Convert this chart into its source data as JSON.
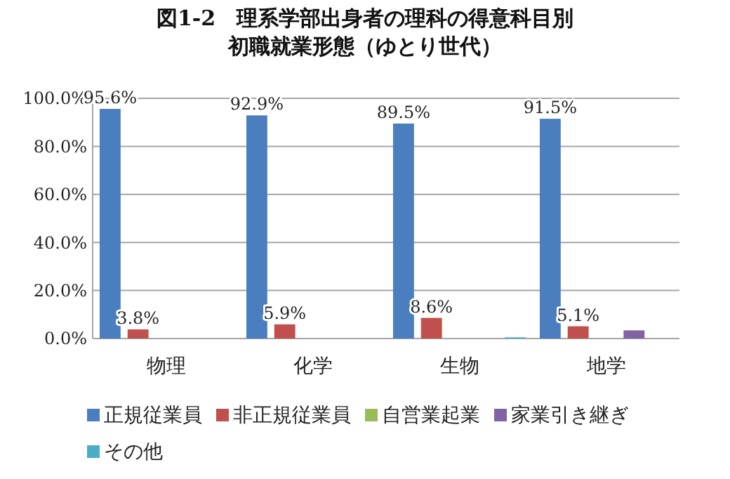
{
  "chart_data": {
    "type": "bar",
    "title": "図1-2　理系学部出身者の理科の得意科目別",
    "subtitle": "初職就業形態（ゆとり世代）",
    "categories": [
      "物理",
      "化学",
      "生物",
      "地学"
    ],
    "series": [
      {
        "name": "正規従業員",
        "color": "#4a7ebf",
        "values": [
          95.6,
          92.9,
          89.5,
          91.5
        ],
        "value_labels": [
          "95.6%",
          "92.9%",
          "89.5%",
          "91.5%"
        ]
      },
      {
        "name": "非正規従業員",
        "color": "#c0504d",
        "values": [
          3.8,
          5.9,
          8.6,
          5.1
        ],
        "value_labels": [
          "3.8%",
          "5.9%",
          "8.6%",
          "5.1%"
        ]
      },
      {
        "name": "自営業起業",
        "color": "#9bbb59",
        "values": [
          0,
          0,
          0,
          0
        ]
      },
      {
        "name": "家業引き継ぎ",
        "color": "#8064a2",
        "values": [
          0,
          0,
          0,
          3.4
        ]
      },
      {
        "name": "その他",
        "color": "#4bacc6",
        "values": [
          0,
          0,
          0.5,
          0
        ]
      }
    ],
    "ylim": [
      0,
      100
    ],
    "yticks": [
      {
        "value": 0,
        "label": "0.0%"
      },
      {
        "value": 20,
        "label": "20.0%"
      },
      {
        "value": 40,
        "label": "40.0%"
      },
      {
        "value": 60,
        "label": "60.0%"
      },
      {
        "value": 80,
        "label": "80.0%"
      },
      {
        "value": 100,
        "label": "100.0%"
      }
    ],
    "grid": "y",
    "legend": "bottom"
  }
}
